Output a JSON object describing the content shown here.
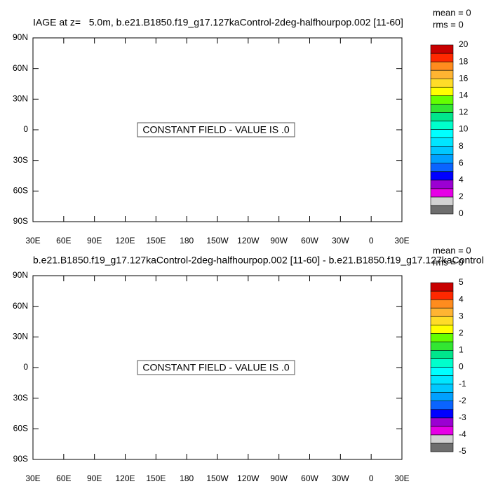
{
  "chart_data": [
    {
      "type": "contour",
      "title": "IAGE at z=   5.0m, b.e21.B1850.f19_g17.127kaControl-2deg-halfhourpop.002 [11-60]",
      "mean_label": "mean = 0",
      "rms_label": "rms = 0",
      "message": "CONSTANT FIELD - VALUE IS .0",
      "xlim": [
        30,
        390
      ],
      "xticks": [
        {
          "value": 30,
          "label": "30E"
        },
        {
          "value": 60,
          "label": "60E"
        },
        {
          "value": 90,
          "label": "90E"
        },
        {
          "value": 120,
          "label": "120E"
        },
        {
          "value": 150,
          "label": "150E"
        },
        {
          "value": 180,
          "label": "180"
        },
        {
          "value": 210,
          "label": "150W"
        },
        {
          "value": 240,
          "label": "120W"
        },
        {
          "value": 270,
          "label": "90W"
        },
        {
          "value": 300,
          "label": "60W"
        },
        {
          "value": 330,
          "label": "30W"
        },
        {
          "value": 360,
          "label": "0"
        },
        {
          "value": 390,
          "label": "30E"
        }
      ],
      "ylim": [
        -90,
        90
      ],
      "yticks": [
        {
          "value": -90,
          "label": "90S"
        },
        {
          "value": -60,
          "label": "60S"
        },
        {
          "value": -30,
          "label": "30S"
        },
        0,
        {
          "value": 30,
          "label": "30N"
        },
        {
          "value": 60,
          "label": "60N"
        },
        {
          "value": 90,
          "label": "90N"
        }
      ],
      "colorbar_ticks": [
        0,
        2,
        4,
        6,
        8,
        10,
        12,
        14,
        16,
        18,
        20
      ],
      "colors": [
        "#6e6e6e",
        "#d2d2d2",
        "#e600e6",
        "#9b00d2",
        "#0000ff",
        "#0a64ff",
        "#00a0ff",
        "#00c8ff",
        "#00e6ff",
        "#00ffff",
        "#00ffcc",
        "#00e68c",
        "#32e632",
        "#64ff00",
        "#ffff00",
        "#ffdc28",
        "#ffb432",
        "#ff8c1e",
        "#ff2800",
        "#c80000"
      ]
    },
    {
      "type": "contour",
      "title": "b.e21.B1850.f19_g17.127kaControl-2deg-halfhourpop.002 [11-60] - b.e21.B1850.f19_g17.127kaControl",
      "mean_label": "mean = 0",
      "rms_label": "rms = 0",
      "message": "CONSTANT FIELD - VALUE IS .0",
      "xlim": [
        30,
        390
      ],
      "xticks": [
        {
          "value": 30,
          "label": "30E"
        },
        {
          "value": 60,
          "label": "60E"
        },
        {
          "value": 90,
          "label": "90E"
        },
        {
          "value": 120,
          "label": "120E"
        },
        {
          "value": 150,
          "label": "150E"
        },
        {
          "value": 180,
          "label": "180"
        },
        {
          "value": 210,
          "label": "150W"
        },
        {
          "value": 240,
          "label": "120W"
        },
        {
          "value": 270,
          "label": "90W"
        },
        {
          "value": 300,
          "label": "60W"
        },
        {
          "value": 330,
          "label": "30W"
        },
        {
          "value": 360,
          "label": "0"
        },
        {
          "value": 390,
          "label": "30E"
        }
      ],
      "ylim": [
        -90,
        90
      ],
      "yticks": [
        {
          "value": -90,
          "label": "90S"
        },
        {
          "value": -60,
          "label": "60S"
        },
        {
          "value": -30,
          "label": "30S"
        },
        0,
        {
          "value": 30,
          "label": "30N"
        },
        {
          "value": 60,
          "label": "60N"
        },
        {
          "value": 90,
          "label": "90N"
        }
      ],
      "colorbar_ticks": [
        -5,
        -4,
        -3,
        -2,
        -1,
        0,
        1,
        2,
        3,
        4,
        5
      ],
      "colors": [
        "#6e6e6e",
        "#d2d2d2",
        "#e600e6",
        "#9b00d2",
        "#0000ff",
        "#0a64ff",
        "#00a0ff",
        "#00c8ff",
        "#00e6ff",
        "#00ffff",
        "#00ffcc",
        "#00e68c",
        "#32e632",
        "#64ff00",
        "#ffff00",
        "#ffdc28",
        "#ffb432",
        "#ff8c1e",
        "#ff2800",
        "#c80000"
      ]
    }
  ]
}
